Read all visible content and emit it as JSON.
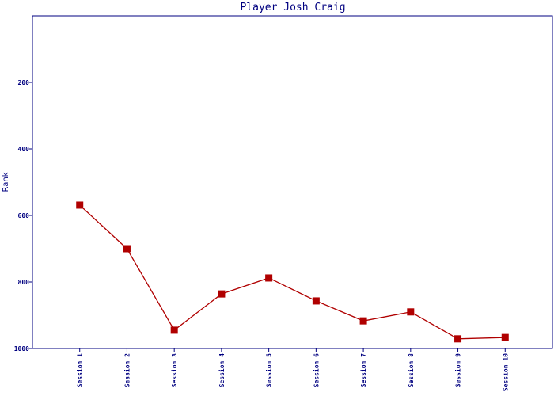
{
  "chart_data": {
    "type": "line",
    "title": "Player Josh Craig",
    "y_label": "Rank",
    "categories": [
      "Session 1",
      "Session 2",
      "Session 3",
      "Session 4",
      "Session 5",
      "Session 6",
      "Session 7",
      "Session 8",
      "Session 9",
      "Session 10"
    ],
    "series": [
      {
        "name": "Rank",
        "color": "#b00000",
        "values": [
          569,
          700,
          945,
          836,
          788,
          857,
          917,
          890,
          971,
          967
        ]
      }
    ],
    "ylim": [
      0,
      1000
    ],
    "y_inverted": true,
    "yticks": [
      200,
      400,
      600,
      800,
      1000
    ],
    "grid": false
  }
}
